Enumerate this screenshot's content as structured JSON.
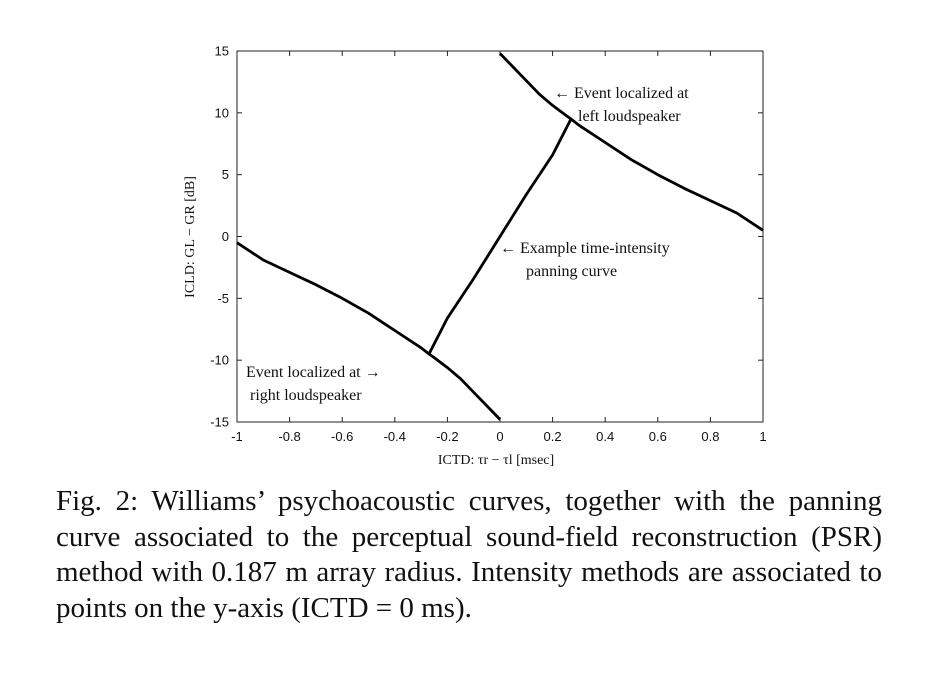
{
  "chart_data": {
    "type": "line",
    "xlabel": "ICTD: τr − τl [msec]",
    "ylabel": "ICLD: GL − GR [dB]",
    "xlim": [
      -1,
      1
    ],
    "ylim": [
      -15,
      15
    ],
    "xticks": [
      "-1",
      "-0.8",
      "-0.6",
      "-0.4",
      "-0.2",
      "0",
      "0.2",
      "0.4",
      "0.6",
      "0.8",
      "1"
    ],
    "yticks": [
      "15",
      "10",
      "5",
      "0",
      "-5",
      "-10",
      "-15"
    ],
    "grid": false,
    "series": [
      {
        "x": [
          0.0,
          0.05,
          0.1,
          0.15,
          0.2,
          0.25,
          0.27,
          0.3,
          0.4,
          0.5,
          0.6,
          0.7,
          0.8,
          0.9,
          1.0
        ],
        "y": [
          14.8,
          13.7,
          12.6,
          11.5,
          10.6,
          9.8,
          9.5,
          9.0,
          7.6,
          6.2,
          5.0,
          3.9,
          2.9,
          1.9,
          0.5
        ]
      },
      {
        "x": [
          -1.0,
          -0.9,
          -0.8,
          -0.7,
          -0.6,
          -0.5,
          -0.4,
          -0.3,
          -0.27,
          -0.25,
          -0.2,
          -0.15,
          -0.1,
          -0.05,
          0.0
        ],
        "y": [
          -0.5,
          -1.9,
          -2.9,
          -3.9,
          -5.0,
          -6.2,
          -7.6,
          -9.0,
          -9.5,
          -9.8,
          -10.6,
          -11.5,
          -12.6,
          -13.7,
          -14.8
        ]
      },
      {
        "x": [
          -0.27,
          -0.2,
          -0.1,
          0.0,
          0.1,
          0.2,
          0.27
        ],
        "y": [
          -9.5,
          -6.6,
          -3.4,
          0.0,
          3.4,
          6.6,
          9.5
        ]
      }
    ],
    "annotations": [
      {
        "lines": [
          "← Event localized at",
          "left loudspeaker"
        ]
      },
      {
        "lines": [
          "← Example time-intensity",
          "panning curve"
        ]
      },
      {
        "lines": [
          "Event localized at →",
          "right loudspeaker"
        ]
      }
    ]
  },
  "caption": "Fig. 2: Williams’ psychoacoustic curves, together with the panning curve associated to the perceptual sound-field reconstruction (PSR) method with 0.187 m array radius. Intensity methods are associated to points on the y-axis (ICTD = 0 ms)."
}
